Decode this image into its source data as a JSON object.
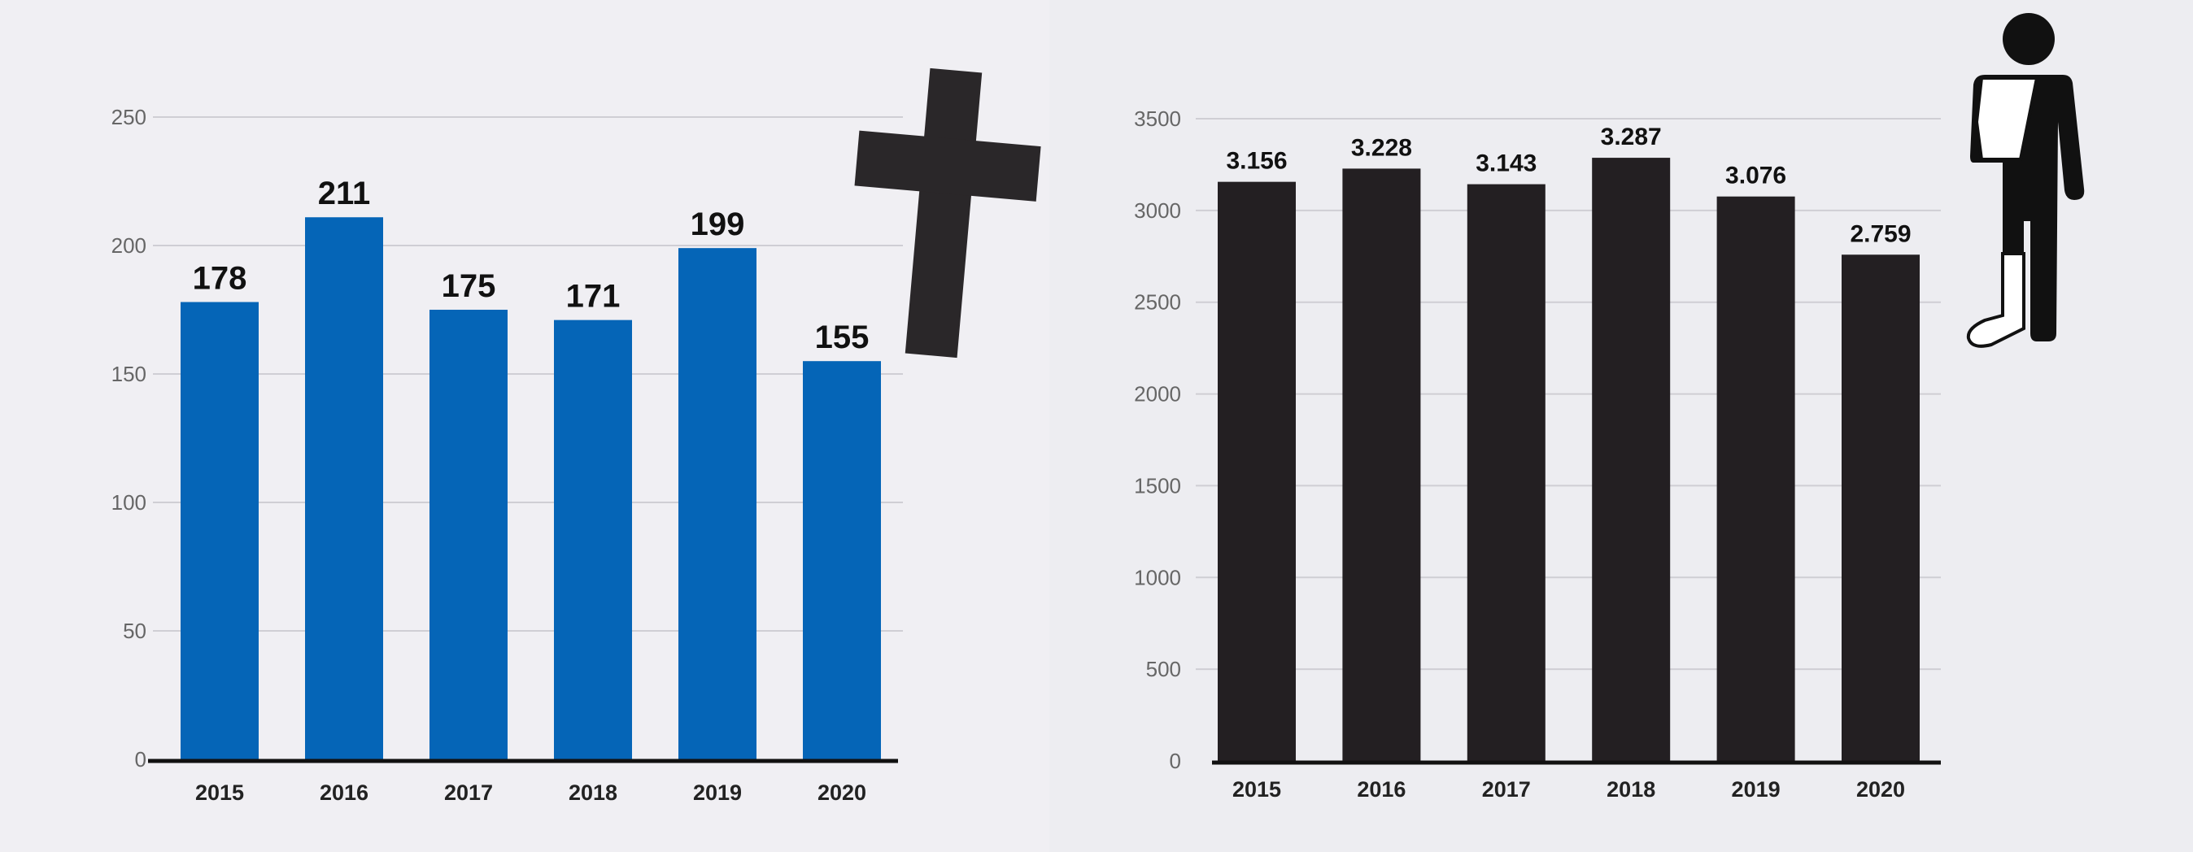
{
  "chart_data": [
    {
      "type": "bar",
      "categories": [
        "2015",
        "2016",
        "2017",
        "2018",
        "2019",
        "2020"
      ],
      "values": [
        178,
        211,
        175,
        171,
        199,
        155
      ],
      "value_labels": [
        "178",
        "211",
        "175",
        "171",
        "199",
        "155"
      ],
      "ylim": [
        0,
        250
      ],
      "yticks": [
        "0",
        "50",
        "100",
        "150",
        "200",
        "250"
      ],
      "grid": true,
      "bar_color": "#0565b7",
      "icon": "cross-icon"
    },
    {
      "type": "bar",
      "categories": [
        "2015",
        "2016",
        "2017",
        "2018",
        "2019",
        "2020"
      ],
      "values": [
        3156,
        3228,
        3143,
        3287,
        3076,
        2759
      ],
      "value_labels": [
        "3.156",
        "3.228",
        "3.143",
        "3.287",
        "3.076",
        "2.759"
      ],
      "ylim": [
        0,
        3500
      ],
      "yticks": [
        "0",
        "500",
        "1000",
        "1500",
        "2000",
        "2500",
        "3000",
        "3500"
      ],
      "grid": true,
      "bar_color": "#231f22",
      "icon": "injured-person-icon"
    }
  ]
}
